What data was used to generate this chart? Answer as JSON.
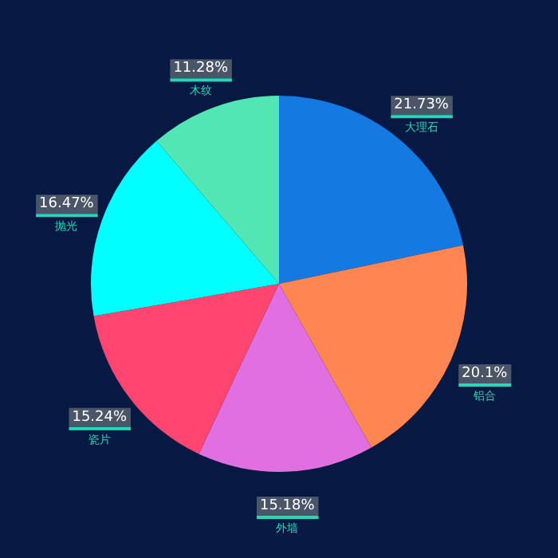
{
  "chart_data": {
    "type": "pie",
    "categories": [
      "大理石",
      "铝合",
      "外墙",
      "瓷片",
      "抛光",
      "木纹"
    ],
    "values": [
      21.73,
      20.1,
      15.18,
      15.24,
      16.47,
      11.28
    ],
    "colors": [
      "#1479e0",
      "#ff8552",
      "#e070e0",
      "#ff4570",
      "#00ffff",
      "#52e6b4"
    ],
    "value_labels": [
      "21.73%",
      "20.1%",
      "15.18%",
      "15.24%",
      "16.47%",
      "11.28%"
    ]
  }
}
